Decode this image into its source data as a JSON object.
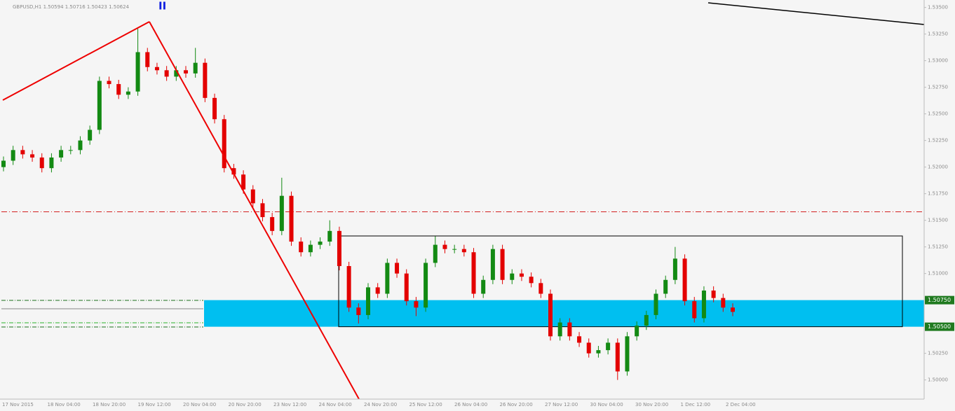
{
  "chart_data": {
    "type": "candlestick",
    "title": "GBPUSD,H1 1.50594 1.50716 1.50423 1.50624",
    "marker": "II",
    "categories": [
      "17 Nov 2015",
      "18 Nov 04:00",
      "18 Nov 20:00",
      "19 Nov 12:00",
      "20 Nov 04:00",
      "20 Nov 20:00",
      "23 Nov 12:00",
      "24 Nov 04:00",
      "24 Nov 20:00",
      "25 Nov 12:00",
      "26 Nov 04:00",
      "26 Nov 20:00",
      "27 Nov 12:00",
      "30 Nov 04:00",
      "30 Nov 20:00",
      "1 Dec 12:00",
      "2 Dec 04:00"
    ],
    "open": [
      1.52,
      1.5206,
      1.5216,
      1.5212,
      1.5209,
      1.5199,
      1.5209,
      1.5216,
      1.5216,
      1.5225,
      1.5235,
      1.5281,
      1.5278,
      1.5268,
      1.5271,
      1.5308,
      1.5294,
      1.5291,
      1.5285,
      1.5291,
      1.5288,
      1.5298,
      1.5265,
      1.5245,
      1.5199,
      1.5193,
      1.5179,
      1.5166,
      1.5153,
      1.514,
      1.5173,
      1.513,
      1.512,
      1.5127,
      1.513,
      1.514,
      1.5107,
      1.5068,
      1.5061,
      1.5087,
      1.5081,
      1.511,
      1.51,
      1.5074,
      1.5068,
      1.511,
      1.5127,
      1.5123,
      1.5123,
      1.512,
      1.5081,
      1.5094,
      1.5123,
      1.5094,
      1.51,
      1.5097,
      1.5091,
      1.5081,
      1.5041,
      1.5054,
      1.5041,
      1.5035,
      1.5025,
      1.5028,
      1.5035,
      1.5008,
      1.5041,
      1.5051,
      1.5061,
      1.5081,
      1.5094,
      1.5114,
      1.5074,
      1.5058,
      1.5084,
      1.5077,
      1.5068
    ],
    "high": [
      1.521,
      1.522,
      1.522,
      1.5216,
      1.5213,
      1.5213,
      1.522,
      1.522,
      1.5229,
      1.5239,
      1.5285,
      1.5285,
      1.5282,
      1.5275,
      1.533,
      1.5312,
      1.5298,
      1.5295,
      1.5295,
      1.5295,
      1.5312,
      1.5302,
      1.5269,
      1.5249,
      1.5203,
      1.5197,
      1.5183,
      1.517,
      1.5157,
      1.519,
      1.5177,
      1.5134,
      1.5131,
      1.5134,
      1.515,
      1.5144,
      1.5111,
      1.5072,
      1.5091,
      1.5091,
      1.5114,
      1.5114,
      1.5104,
      1.5078,
      1.5114,
      1.5135,
      1.5131,
      1.5127,
      1.5127,
      1.5124,
      1.5098,
      1.5127,
      1.5127,
      1.5104,
      1.5104,
      1.5101,
      1.5095,
      1.5085,
      1.5058,
      1.5058,
      1.5045,
      1.5039,
      1.5032,
      1.5039,
      1.5039,
      1.5045,
      1.5055,
      1.5065,
      1.5085,
      1.5098,
      1.5125,
      1.5118,
      1.5078,
      1.5088,
      1.5088,
      1.5081,
      1.5072
    ],
    "low": [
      1.5196,
      1.5202,
      1.5208,
      1.5205,
      1.5195,
      1.5195,
      1.5205,
      1.5212,
      1.5212,
      1.5221,
      1.5231,
      1.5274,
      1.5264,
      1.5264,
      1.5267,
      1.529,
      1.5287,
      1.5281,
      1.5281,
      1.5284,
      1.5284,
      1.5261,
      1.5241,
      1.5195,
      1.5189,
      1.5175,
      1.5162,
      1.5149,
      1.5136,
      1.5136,
      1.5126,
      1.5116,
      1.5116,
      1.5123,
      1.5126,
      1.5103,
      1.5064,
      1.5053,
      1.5057,
      1.5077,
      1.5077,
      1.5096,
      1.507,
      1.506,
      1.5064,
      1.5106,
      1.5119,
      1.5119,
      1.5116,
      1.5077,
      1.5077,
      1.509,
      1.509,
      1.509,
      1.5093,
      1.5087,
      1.5077,
      1.5037,
      1.5037,
      1.5037,
      1.5031,
      1.5021,
      1.5021,
      1.5024,
      1.5,
      1.5004,
      1.5037,
      1.5047,
      1.5057,
      1.5077,
      1.509,
      1.507,
      1.5054,
      1.5054,
      1.5073,
      1.5064,
      1.506
    ],
    "close": [
      1.5206,
      1.5216,
      1.5212,
      1.5209,
      1.5199,
      1.5209,
      1.5216,
      1.5216,
      1.5225,
      1.5235,
      1.5281,
      1.5278,
      1.5268,
      1.5271,
      1.5308,
      1.5294,
      1.5291,
      1.5285,
      1.5291,
      1.5288,
      1.5298,
      1.5265,
      1.5245,
      1.5199,
      1.5193,
      1.5179,
      1.5166,
      1.5153,
      1.514,
      1.5173,
      1.513,
      1.512,
      1.5127,
      1.513,
      1.514,
      1.5107,
      1.5068,
      1.5061,
      1.5087,
      1.5081,
      1.511,
      1.51,
      1.5074,
      1.5068,
      1.511,
      1.5127,
      1.5123,
      1.5123,
      1.512,
      1.5081,
      1.5094,
      1.5123,
      1.5094,
      1.51,
      1.5097,
      1.5091,
      1.5081,
      1.5041,
      1.5054,
      1.5041,
      1.5035,
      1.5025,
      1.5028,
      1.5035,
      1.5008,
      1.5041,
      1.5051,
      1.5061,
      1.5081,
      1.5094,
      1.5114,
      1.5074,
      1.5058,
      1.5084,
      1.5077,
      1.5068,
      1.5064
    ],
    "up_color": "#138a13",
    "down_color": "#e30000",
    "ylim": [
      1.4982,
      1.5357
    ],
    "yticks": [
      {
        "value": 1.5,
        "label": "1.50000"
      },
      {
        "value": 1.5025,
        "label": "1.50250"
      },
      {
        "value": 1.51,
        "label": "1.51000"
      },
      {
        "value": 1.5125,
        "label": "1.51250"
      },
      {
        "value": 1.515,
        "label": "1.51500"
      },
      {
        "value": 1.5175,
        "label": "1.51750"
      },
      {
        "value": 1.52,
        "label": "1.52000"
      },
      {
        "value": 1.5225,
        "label": "1.52250"
      },
      {
        "value": 1.525,
        "label": "1.52500"
      },
      {
        "value": 1.5275,
        "label": "1.52750"
      },
      {
        "value": 1.53,
        "label": "1.53000"
      },
      {
        "value": 1.5325,
        "label": "1.53250"
      },
      {
        "value": 1.535,
        "label": "1.53500"
      }
    ],
    "levels": [
      {
        "value": 1.5075,
        "label": "1.50750"
      },
      {
        "value": 1.505,
        "label": "1.50500"
      }
    ],
    "resistance": 1.5158
  }
}
